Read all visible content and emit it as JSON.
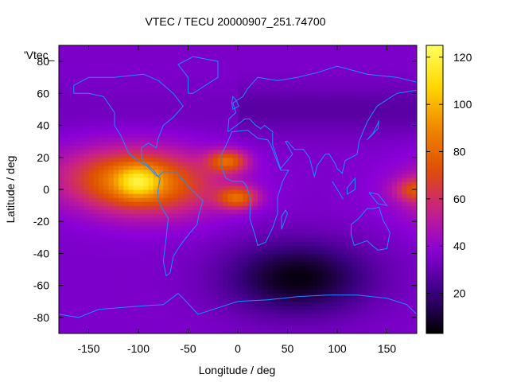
{
  "chart_data": {
    "type": "heatmap",
    "title": "VTEC / TECU 20000907_251.74700",
    "xlabel": "Longitude / deg",
    "ylabel": "Latitude / deg",
    "series_label": "'Vtec_",
    "xlim": [
      -180,
      180
    ],
    "ylim": [
      -90,
      90
    ],
    "x_ticks": [
      -150,
      -100,
      -50,
      0,
      50,
      100,
      150
    ],
    "y_ticks": [
      -80,
      -60,
      -40,
      -20,
      0,
      20,
      40,
      60,
      80
    ],
    "colorbar": {
      "min": 3,
      "max": 125,
      "ticks": [
        20,
        40,
        60,
        80,
        100,
        120
      ]
    },
    "palette": [
      "#000000",
      "#3a0080",
      "#8a00d8",
      "#c8208a",
      "#e05000",
      "#f08800",
      "#ffd800",
      "#ffff60"
    ],
    "grid": false,
    "features": {
      "crest_center": {
        "lon": -100,
        "lat": 5,
        "peak_tecu": 120
      },
      "secondary_maxima": [
        {
          "lon": -10,
          "lat": 18,
          "tecu": 95
        },
        {
          "lon": 0,
          "lat": -5,
          "tecu": 95
        },
        {
          "lon": 178,
          "lat": 0,
          "tecu": 80
        }
      ],
      "background_tecu": 35,
      "southern_minimum": {
        "lon": 60,
        "lat": -55,
        "tecu": 8
      }
    }
  }
}
